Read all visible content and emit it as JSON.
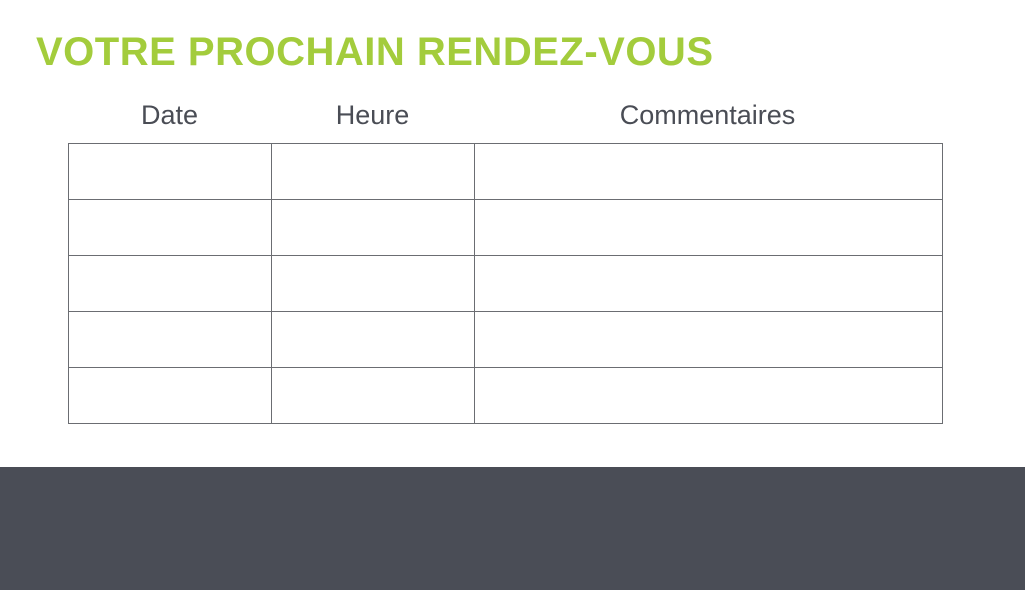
{
  "title": "VOTRE PROCHAIN RENDEZ-VOUS",
  "columns": [
    "Date",
    "Heure",
    "Commentaires"
  ],
  "rows": 5,
  "colors": {
    "accent": "#a3cc3c",
    "footer": "#4a4d56"
  }
}
